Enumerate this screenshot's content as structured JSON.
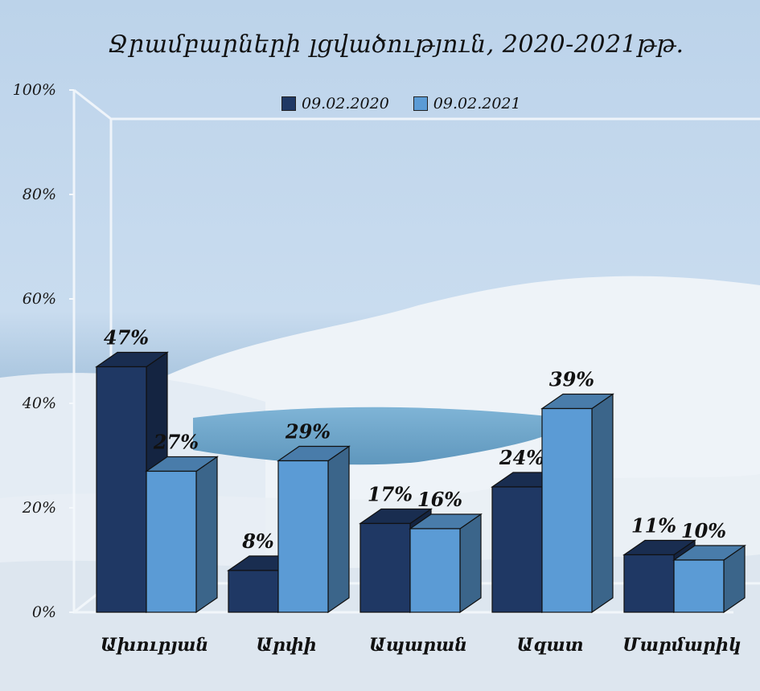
{
  "chart_data": {
    "type": "bar",
    "title": "Ջրամբարների լցվածություն,  2020-2021թթ.",
    "categories": [
      "Ախուրյան",
      "Արփի",
      "Ապարան",
      "Ազատ",
      "Մարմարիկ"
    ],
    "series": [
      {
        "name": "09.02.2020",
        "values": [
          47,
          8,
          17,
          24,
          11
        ],
        "labels": [
          "47%",
          "8%",
          "17%",
          "24%",
          "11%"
        ],
        "color": "#1f3864"
      },
      {
        "name": "09.02.2021",
        "values": [
          27,
          29,
          16,
          39,
          10
        ],
        "labels": [
          "27%",
          "29%",
          "16%",
          "39%",
          "10%"
        ],
        "color": "#5b9bd5"
      }
    ],
    "y_ticks": [
      {
        "value": 0,
        "label": "0%"
      },
      {
        "value": 20,
        "label": "20%"
      },
      {
        "value": 40,
        "label": "40%"
      },
      {
        "value": 60,
        "label": "60%"
      },
      {
        "value": 80,
        "label": "80%"
      },
      {
        "value": 100,
        "label": "100%"
      }
    ],
    "ylim": [
      0,
      100
    ],
    "style": "3d-clustered-column",
    "legend_position": "top",
    "grid": false
  }
}
